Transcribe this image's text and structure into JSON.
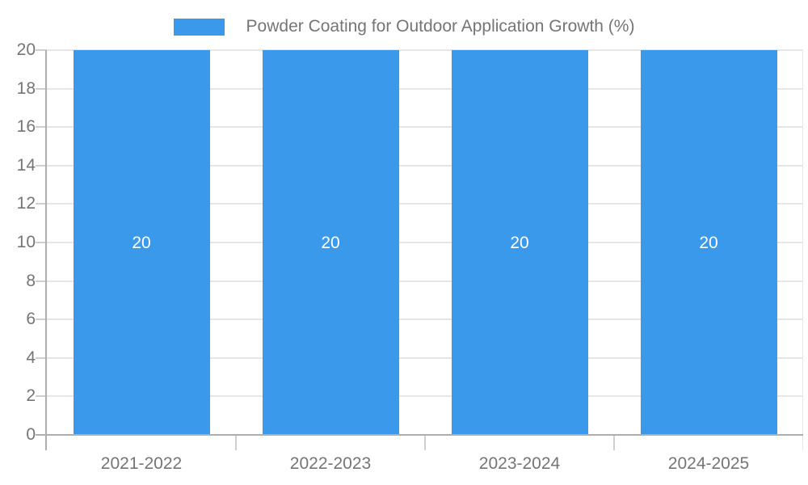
{
  "chart_data": {
    "type": "bar",
    "title": "Powder Coating for Outdoor Application Growth (%)",
    "categories": [
      "2021-2022",
      "2022-2023",
      "2023-2024",
      "2024-2025"
    ],
    "values": [
      20,
      20,
      20,
      20
    ],
    "bar_value_labels": [
      "20",
      "20",
      "20",
      "20"
    ],
    "xlabel": "",
    "ylabel": "",
    "ylim": [
      0,
      20
    ],
    "yticks": [
      0,
      2,
      4,
      6,
      8,
      10,
      12,
      14,
      16,
      18,
      20
    ],
    "grid": true,
    "legend": {
      "position": "top-center",
      "label": "Powder Coating for Outdoor Application Growth (%)"
    },
    "colors": {
      "bar": "#3B99EC",
      "bar_label_text": "#ffffff",
      "tick_label_text": "#757575",
      "legend_text": "#757575",
      "gridline": "#e6e6e6",
      "tick_mark": "#cfcfcf",
      "axis_line": "#aeaeae",
      "background": "#ffffff"
    }
  }
}
